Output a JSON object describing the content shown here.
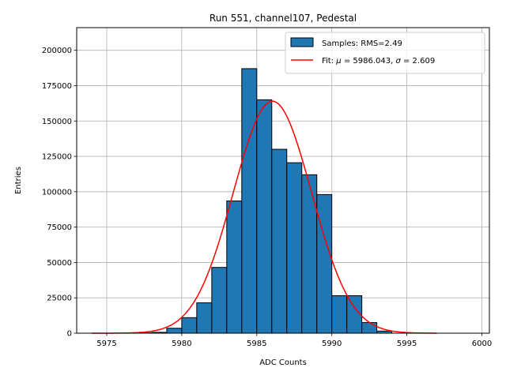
{
  "chart_data": {
    "type": "bar",
    "title": "Run 551, channel107, Pedestal",
    "xlabel": "ADC Counts",
    "ylabel": "Entries",
    "xlim": [
      5973,
      6000.5
    ],
    "ylim": [
      0,
      216000
    ],
    "xticks": [
      5975,
      5980,
      5985,
      5990,
      5995,
      6000
    ],
    "yticks": [
      0,
      25000,
      50000,
      75000,
      100000,
      125000,
      150000,
      175000,
      200000
    ],
    "grid": true,
    "legend_position": "top-right",
    "bin_width": 1,
    "histogram": {
      "name": "Samples: RMS=2.49",
      "color": "#1f77b4",
      "bin_edges": [
        5977,
        5978,
        5979,
        5980,
        5981,
        5982,
        5983,
        5984,
        5985,
        5986,
        5987,
        5988,
        5989,
        5990,
        5991,
        5992,
        5993,
        5994
      ],
      "values": [
        300,
        600,
        3500,
        11000,
        21500,
        46500,
        93500,
        187000,
        165000,
        130000,
        120500,
        112000,
        98000,
        26500,
        26500,
        7500,
        1500
      ]
    },
    "fit": {
      "name_parts": [
        "Fit: ",
        "μ",
        " = 5986.043, ",
        "σ",
        " = 2.609"
      ],
      "color": "#ff0000",
      "mu": 5986.043,
      "sigma": 2.609,
      "amplitude": 164000,
      "x_range": [
        5974,
        5997
      ]
    }
  }
}
